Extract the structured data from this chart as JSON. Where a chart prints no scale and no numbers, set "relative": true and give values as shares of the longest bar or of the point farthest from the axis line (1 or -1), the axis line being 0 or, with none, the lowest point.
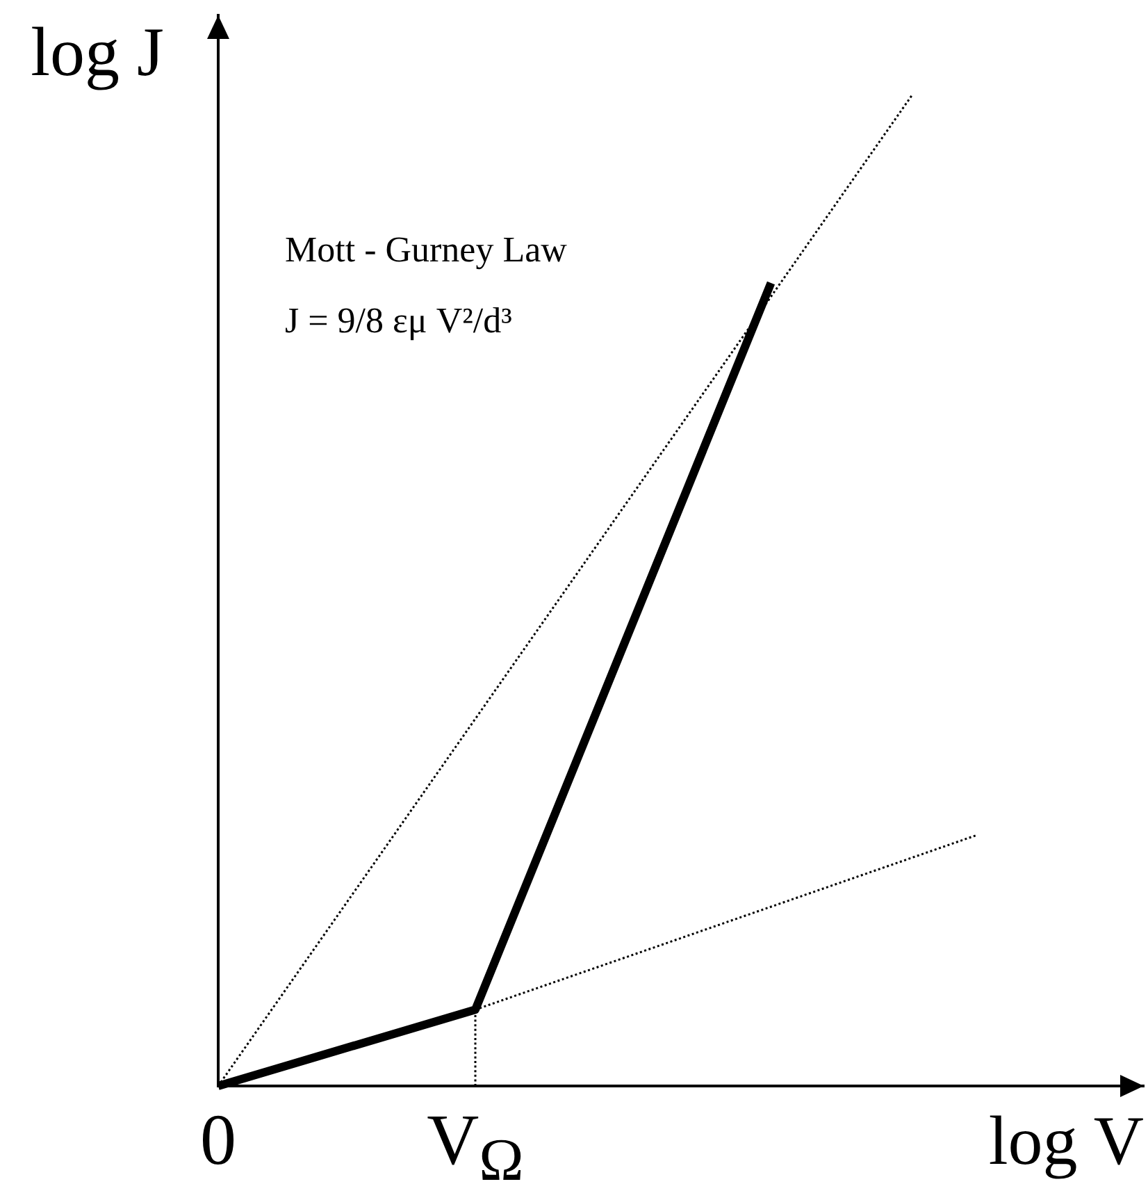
{
  "chart_data": {
    "type": "line",
    "relative": true,
    "xlabel": "log V",
    "ylabel": "log J",
    "annotations": [
      "Mott - Gurney Law",
      "J = 9/8 εμ V²/d³"
    ],
    "categories": [
      "0",
      null,
      null,
      null,
      null,
      null,
      null,
      null,
      null,
      null,
      null,
      null,
      null,
      null,
      null,
      null,
      null,
      null,
      null,
      null,
      "V$_{Ω}$",
      null,
      null,
      null,
      null,
      null,
      null,
      null,
      null,
      null,
      null,
      null,
      null,
      null,
      null,
      null,
      null,
      null,
      null,
      null,
      null,
      null,
      null,
      null,
      null,
      null,
      null,
      null,
      null,
      null,
      null,
      null,
      null,
      null,
      null,
      null,
      null,
      null,
      null,
      null,
      null,
      null,
      null,
      null,
      null,
      null,
      null,
      null,
      null,
      null,
      null,
      null,
      null
    ],
    "marker": "none",
    "series": [
      {
        "color": "#000000",
        "line_style": "solid",
        "values": [
          0,
          null,
          null,
          null,
          null,
          null,
          null,
          null,
          null,
          null,
          null,
          null,
          null,
          null,
          null,
          null,
          null,
          null,
          null,
          null,
          0.077,
          null,
          null,
          null,
          null,
          null,
          null,
          null,
          null,
          null,
          null,
          null,
          null,
          null,
          null,
          null,
          null,
          null,
          null,
          null,
          null,
          null,
          null,
          0.81,
          null,
          null,
          null,
          null,
          null,
          null,
          null,
          null,
          null,
          null,
          null,
          null,
          null,
          null,
          null,
          null,
          null,
          null,
          null,
          null,
          null,
          null,
          null,
          null,
          null,
          null,
          null,
          null,
          null
        ]
      },
      {
        "color": "#000000",
        "line_style": "dotted",
        "values": [
          0,
          null,
          null,
          null,
          null,
          null,
          null,
          null,
          null,
          null,
          null,
          null,
          null,
          null,
          null,
          null,
          null,
          null,
          null,
          null,
          null,
          null,
          null,
          null,
          null,
          null,
          null,
          null,
          null,
          null,
          null,
          null,
          null,
          null,
          null,
          null,
          null,
          null,
          null,
          null,
          null,
          null,
          null,
          null,
          null,
          null,
          null,
          null,
          null,
          null,
          null,
          null,
          null,
          null,
          1,
          null,
          null,
          null,
          null,
          null,
          null,
          null,
          null,
          null,
          null,
          null,
          null,
          null,
          null,
          null,
          null,
          null,
          null
        ]
      },
      {
        "color": "#000000",
        "line_style": "dotted",
        "values": [
          null,
          null,
          null,
          null,
          null,
          null,
          null,
          null,
          null,
          null,
          null,
          null,
          null,
          null,
          null,
          null,
          null,
          null,
          null,
          null,
          0.077,
          null,
          null,
          null,
          null,
          null,
          null,
          null,
          null,
          null,
          null,
          null,
          null,
          null,
          null,
          null,
          null,
          null,
          null,
          null,
          null,
          null,
          null,
          null,
          null,
          null,
          null,
          null,
          null,
          null,
          null,
          null,
          null,
          null,
          null,
          null,
          null,
          null,
          null,
          0.253,
          null,
          null,
          null,
          null,
          null,
          null,
          null,
          null,
          null,
          null,
          null,
          null,
          null
        ]
      },
      {
        "color": "#000000",
        "line_style": "dotted",
        "x": [
          "V$_{Ω}$",
          "V$_{Ω}$"
        ],
        "values": [
          0,
          0.077
        ]
      }
    ]
  }
}
